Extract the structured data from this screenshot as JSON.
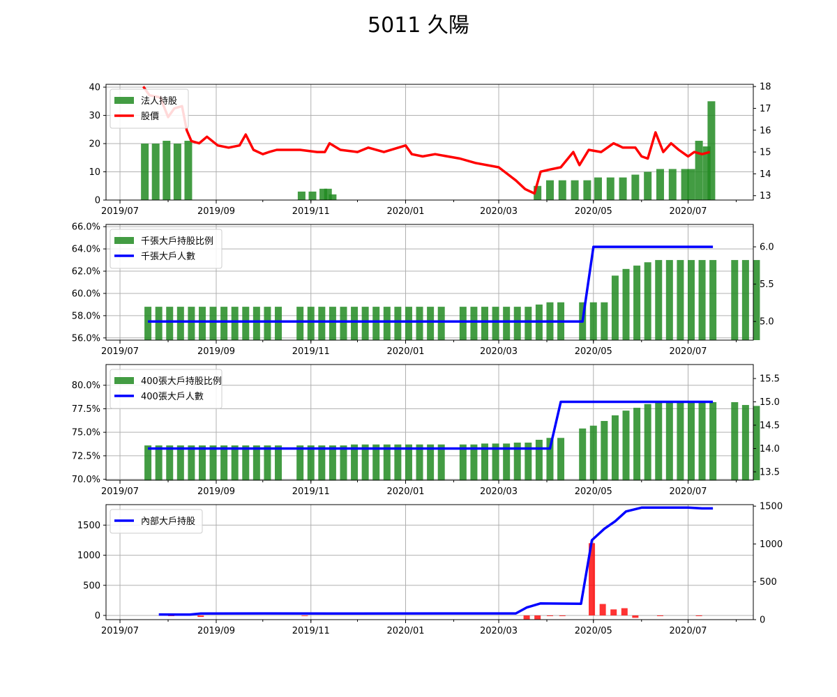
{
  "title": "5011 久陽",
  "x_ticks": [
    "2019/07",
    "2019/09",
    "2019/11",
    "2020/01",
    "2020/03",
    "2020/05",
    "2020/07"
  ],
  "colors": {
    "bar_green": "#228B22",
    "bar_red": "#ff0000",
    "price_line": "#ff0000",
    "count_line": "#0000ff",
    "grid": "#b0b0b0"
  },
  "chart_data": [
    {
      "type": "bar",
      "name": "panel-1",
      "left_axis": {
        "ylim": [
          0,
          41
        ],
        "ticks": [
          "0",
          "10",
          "20",
          "30",
          "40"
        ]
      },
      "right_axis": {
        "ylim": [
          12.8,
          18.1
        ],
        "ticks": [
          "13",
          "14",
          "15",
          "16",
          "17",
          "18"
        ]
      },
      "legend": {
        "placement": "upper-left",
        "entries": [
          "法人持股",
          "股價"
        ]
      },
      "bars": {
        "name": "法人持股",
        "x": [
          "2019-07-17",
          "2019-07-24",
          "2019-07-31",
          "2019-08-07",
          "2019-08-14",
          "2019-10-26",
          "2019-11-02",
          "2019-11-09",
          "2019-11-12",
          "2019-11-15",
          "2020-03-26",
          "2020-04-03",
          "2020-04-11",
          "2020-04-19",
          "2020-04-27",
          "2020-05-04",
          "2020-05-12",
          "2020-05-20",
          "2020-05-28",
          "2020-06-05",
          "2020-06-13",
          "2020-06-21",
          "2020-06-29",
          "2020-07-03",
          "2020-07-08",
          "2020-07-13",
          "2020-07-16"
        ],
        "values": [
          20,
          20,
          21,
          20,
          21,
          3,
          3,
          4,
          4,
          2,
          5,
          7,
          7,
          7,
          7,
          8,
          8,
          8,
          9,
          10,
          11,
          11,
          11,
          11,
          21,
          19,
          35
        ]
      },
      "line": {
        "name": "股價",
        "x": [
          "2019-07-16",
          "2019-07-20",
          "2019-07-27",
          "2019-08-01",
          "2019-08-05",
          "2019-08-10",
          "2019-08-13",
          "2019-08-16",
          "2019-08-21",
          "2019-08-26",
          "2019-09-02",
          "2019-09-09",
          "2019-09-16",
          "2019-09-20",
          "2019-09-25",
          "2019-10-01",
          "2019-10-05",
          "2019-10-10",
          "2019-10-18",
          "2019-10-25",
          "2019-11-05",
          "2019-11-10",
          "2019-11-13",
          "2019-11-20",
          "2019-12-01",
          "2019-12-08",
          "2019-12-18",
          "2020-01-01",
          "2020-01-05",
          "2020-01-12",
          "2020-01-20",
          "2020-02-05",
          "2020-02-15",
          "2020-03-01",
          "2020-03-12",
          "2020-03-18",
          "2020-03-24",
          "2020-03-28",
          "2020-04-03",
          "2020-04-10",
          "2020-04-18",
          "2020-04-22",
          "2020-04-28",
          "2020-05-06",
          "2020-05-14",
          "2020-05-20",
          "2020-05-28",
          "2020-06-01",
          "2020-06-05",
          "2020-06-10",
          "2020-06-15",
          "2020-06-20",
          "2020-06-25",
          "2020-07-01",
          "2020-07-05",
          "2020-07-10",
          "2020-07-15"
        ],
        "values": [
          18.0,
          17.6,
          17.5,
          16.6,
          17.0,
          17.1,
          16.0,
          15.5,
          15.4,
          15.7,
          15.3,
          15.2,
          15.3,
          15.8,
          15.1,
          14.9,
          15.0,
          15.1,
          15.1,
          15.1,
          15.0,
          15.0,
          15.4,
          15.1,
          15.0,
          15.2,
          15.0,
          15.3,
          14.9,
          14.8,
          14.9,
          14.7,
          14.5,
          14.3,
          13.7,
          13.3,
          13.1,
          14.1,
          14.2,
          14.3,
          15.0,
          14.4,
          15.1,
          15.0,
          15.4,
          15.2,
          15.2,
          14.8,
          14.7,
          15.9,
          15.0,
          15.4,
          15.1,
          14.8,
          15.0,
          14.9,
          15.0
        ]
      }
    },
    {
      "type": "bar",
      "name": "panel-2",
      "left_axis": {
        "ylim": [
          55.8,
          66.2
        ],
        "ticks": [
          "56.0%",
          "58.0%",
          "60.0%",
          "62.0%",
          "64.0%",
          "66.0%"
        ]
      },
      "right_axis": {
        "ylim": [
          4.75,
          6.3
        ],
        "ticks": [
          "5.0",
          "5.5",
          "6.0"
        ]
      },
      "legend": {
        "placement": "upper-left",
        "entries": [
          "千張大戶持股比例",
          "千張大戶人數"
        ]
      },
      "bars": {
        "name": "千張大戶持股比例",
        "start": "2019-07-19",
        "step_days": 7,
        "values": [
          58.8,
          58.8,
          58.8,
          58.8,
          58.8,
          58.8,
          58.8,
          58.8,
          58.8,
          58.8,
          58.8,
          58.8,
          58.8,
          null,
          58.8,
          58.8,
          58.8,
          58.8,
          58.8,
          58.8,
          58.8,
          58.8,
          58.8,
          58.8,
          58.8,
          58.8,
          58.8,
          58.8,
          null,
          58.8,
          58.8,
          58.8,
          58.8,
          58.8,
          58.8,
          58.8,
          59.0,
          59.2,
          59.2,
          null,
          59.2,
          59.2,
          59.2,
          61.6,
          62.2,
          62.5,
          62.8,
          63.0,
          63.0,
          63.0,
          63.0,
          63.0,
          63.0,
          null,
          63.0,
          63.0,
          63.0
        ]
      },
      "line": {
        "name": "千張大戶人數",
        "x": [
          "2019-07-19",
          "2020-04-24",
          "2020-05-01",
          "2020-07-17"
        ],
        "values": [
          5.0,
          5.0,
          6.0,
          6.0
        ]
      }
    },
    {
      "type": "bar",
      "name": "panel-3",
      "left_axis": {
        "ylim": [
          69.9,
          82.2
        ],
        "ticks": [
          "70.0%",
          "72.5%",
          "75.0%",
          "77.5%",
          "80.0%"
        ]
      },
      "right_axis": {
        "ylim": [
          13.32,
          15.8
        ],
        "ticks": [
          "13.5",
          "14.0",
          "14.5",
          "15.0",
          "15.5"
        ]
      },
      "legend": {
        "placement": "upper-left",
        "entries": [
          "400張大戶持股比例",
          "400張大戶人數"
        ]
      },
      "bars": {
        "name": "400張大戶持股比例",
        "start": "2019-07-19",
        "step_days": 7,
        "values": [
          73.6,
          73.6,
          73.6,
          73.6,
          73.6,
          73.6,
          73.6,
          73.6,
          73.6,
          73.6,
          73.6,
          73.6,
          73.6,
          null,
          73.6,
          73.6,
          73.6,
          73.6,
          73.6,
          73.7,
          73.7,
          73.7,
          73.7,
          73.7,
          73.7,
          73.7,
          73.7,
          73.7,
          null,
          73.7,
          73.7,
          73.8,
          73.8,
          73.8,
          73.9,
          73.9,
          74.2,
          74.4,
          74.4,
          null,
          75.4,
          75.7,
          76.2,
          76.8,
          77.3,
          77.6,
          78.0,
          78.2,
          78.2,
          78.2,
          78.2,
          78.2,
          78.2,
          null,
          78.2,
          77.9,
          77.8
        ]
      },
      "line": {
        "name": "400張大戶人數",
        "x": [
          "2019-07-19",
          "2020-04-03",
          "2020-04-10",
          "2020-07-17"
        ],
        "values": [
          14.0,
          14.0,
          15.0,
          15.0
        ]
      }
    },
    {
      "type": "bar",
      "name": "panel-4",
      "left_axis": {
        "ylim": [
          -70,
          1840
        ],
        "ticks": [
          "0",
          "500",
          "1000",
          "1500"
        ]
      },
      "right_axis": {
        "ylim": [
          0,
          1520
        ],
        "ticks": [
          "0",
          "500",
          "1000",
          "1500"
        ]
      },
      "legend": {
        "placement": "upper-left",
        "entries": [
          "內部大戶持股"
        ]
      },
      "bars": {
        "name": "",
        "x": [
          "2019-08-03",
          "2019-08-22",
          "2019-10-28",
          "2020-03-19",
          "2020-03-26",
          "2020-04-03",
          "2020-04-11",
          "2020-04-30",
          "2020-05-07",
          "2020-05-14",
          "2020-05-21",
          "2020-05-28",
          "2020-06-13",
          "2020-07-08"
        ],
        "values": [
          -10,
          -25,
          -10,
          -75,
          -65,
          -10,
          -10,
          1200,
          190,
          100,
          120,
          -40,
          -5,
          -5
        ]
      },
      "line": {
        "name": "內部大戶持股",
        "x": [
          "2019-07-26",
          "2019-08-15",
          "2019-08-22",
          "2019-10-01",
          "2019-11-15",
          "2020-03-12",
          "2020-03-19",
          "2020-03-28",
          "2020-04-23",
          "2020-04-30",
          "2020-05-08",
          "2020-05-15",
          "2020-05-22",
          "2020-06-01",
          "2020-06-15",
          "2020-07-01",
          "2020-07-10",
          "2020-07-17"
        ],
        "values": [
          68,
          66,
          80,
          82,
          80,
          82,
          160,
          215,
          210,
          1050,
          1200,
          1300,
          1430,
          1480,
          1480,
          1480,
          1470,
          1470
        ]
      }
    }
  ]
}
